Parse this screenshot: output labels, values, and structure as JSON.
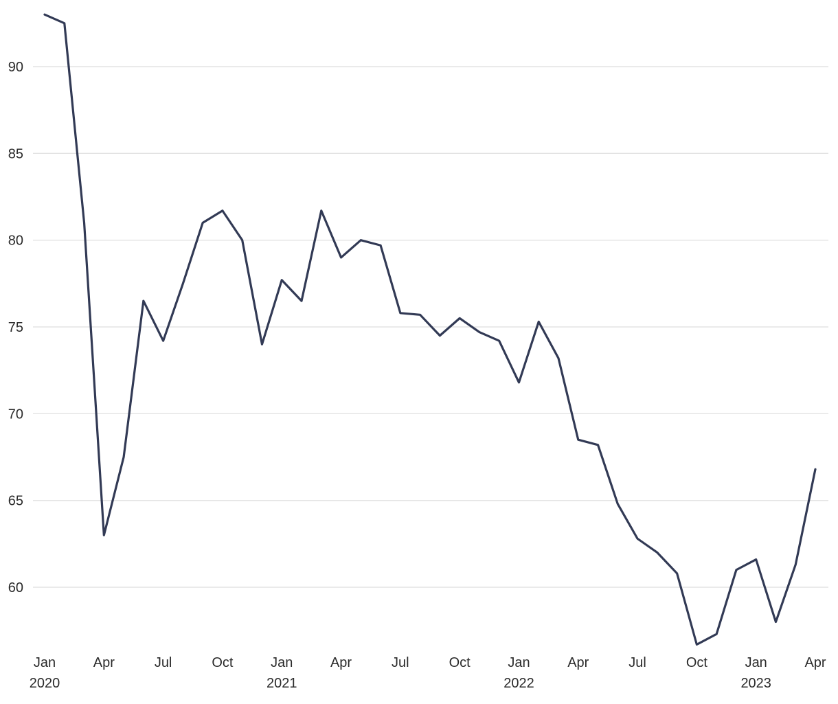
{
  "chart_data": {
    "type": "line",
    "title": "",
    "xlabel": "",
    "ylabel": "",
    "x": [
      "2020-01",
      "2020-02",
      "2020-03",
      "2020-04",
      "2020-05",
      "2020-06",
      "2020-07",
      "2020-08",
      "2020-09",
      "2020-10",
      "2020-11",
      "2020-12",
      "2021-01",
      "2021-02",
      "2021-03",
      "2021-04",
      "2021-05",
      "2021-06",
      "2021-07",
      "2021-08",
      "2021-09",
      "2021-10",
      "2021-11",
      "2021-12",
      "2022-01",
      "2022-02",
      "2022-03",
      "2022-04",
      "2022-05",
      "2022-06",
      "2022-07",
      "2022-08",
      "2022-09",
      "2022-10",
      "2022-11",
      "2022-12",
      "2023-01",
      "2023-02",
      "2023-03",
      "2023-04"
    ],
    "series": [
      {
        "values": [
          93.0,
          92.5,
          81.0,
          63.0,
          67.5,
          76.5,
          74.2,
          77.5,
          81.0,
          81.7,
          80.0,
          74.0,
          77.7,
          76.5,
          81.7,
          79.0,
          80.0,
          79.7,
          75.8,
          75.7,
          74.5,
          75.5,
          74.7,
          74.2,
          71.8,
          75.3,
          73.2,
          68.5,
          68.2,
          64.8,
          62.8,
          62.0,
          60.8,
          56.7,
          57.3,
          61.0,
          61.6,
          58.0,
          61.3,
          66.8
        ],
        "color": "#323a55"
      }
    ],
    "y_ticks": [
      "60",
      "65",
      "70",
      "75",
      "80",
      "85",
      "90"
    ],
    "x_ticks": [
      {
        "label": "Jan",
        "sub": "2020",
        "index": 0
      },
      {
        "label": "Apr",
        "sub": "",
        "index": 3
      },
      {
        "label": "Jul",
        "sub": "",
        "index": 6
      },
      {
        "label": "Oct",
        "sub": "",
        "index": 9
      },
      {
        "label": "Jan",
        "sub": "2021",
        "index": 12
      },
      {
        "label": "Apr",
        "sub": "",
        "index": 15
      },
      {
        "label": "Jul",
        "sub": "",
        "index": 18
      },
      {
        "label": "Oct",
        "sub": "",
        "index": 21
      },
      {
        "label": "Jan",
        "sub": "2022",
        "index": 24
      },
      {
        "label": "Apr",
        "sub": "",
        "index": 27
      },
      {
        "label": "Jul",
        "sub": "",
        "index": 30
      },
      {
        "label": "Oct",
        "sub": "",
        "index": 33
      },
      {
        "label": "Jan",
        "sub": "2023",
        "index": 36
      },
      {
        "label": "Apr",
        "sub": "",
        "index": 39
      }
    ],
    "ylim": [
      56.2,
      93.6
    ],
    "grid": true,
    "legend": "none",
    "gridline_color": "#e3e3e3"
  }
}
